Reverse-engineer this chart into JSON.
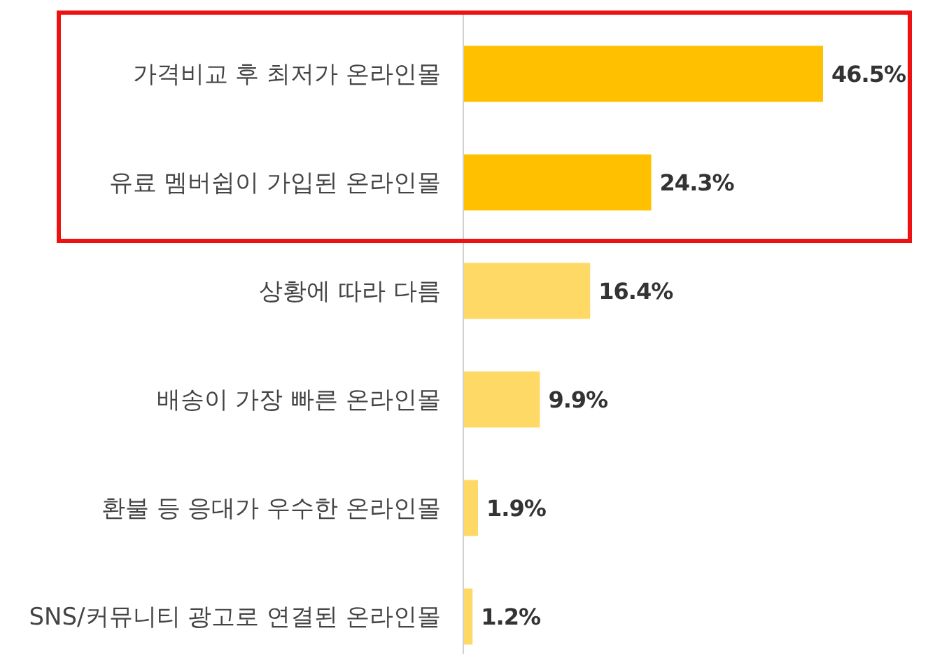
{
  "chart_data": {
    "type": "bar",
    "orientation": "horizontal",
    "value_labels": [
      "46.5%",
      "24.3%",
      "16.4%",
      "9.9%",
      "1.9%",
      "1.2%"
    ],
    "categories": [
      "가격비교 후 최저가 온라인몰",
      "유료 멤버쉽이 가입된 온라인몰",
      "상황에 따라 다름",
      "배송이 가장 빠른 온라인몰",
      "환불 등 응대가 우수한 온라인몰",
      "SNS/커뮤니티 광고로 연결된 온라인몰"
    ],
    "values": [
      46.5,
      24.3,
      16.4,
      9.9,
      1.9,
      1.2
    ],
    "colors": [
      "#ffc000",
      "#ffc000",
      "#ffd966",
      "#ffd966",
      "#ffd966",
      "#ffd966"
    ]
  }
}
